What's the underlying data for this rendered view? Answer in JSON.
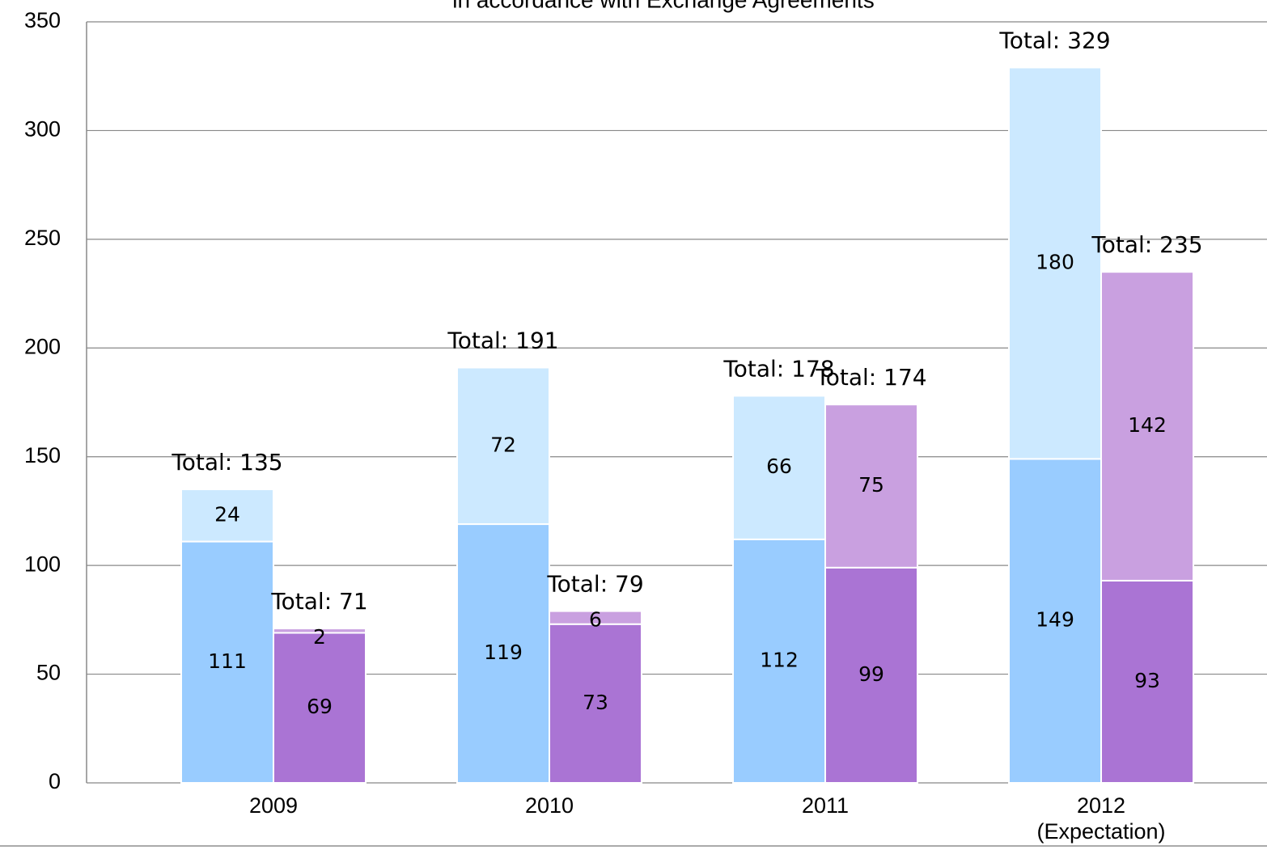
{
  "chart_data": {
    "type": "bar",
    "title": "in accordance with Exchange Agreements",
    "categories": [
      "2009",
      "2010",
      "2011",
      "2012\n(Expectation)"
    ],
    "stacks": [
      {
        "series": [
          {
            "color": "#99ccff",
            "values": [
              111,
              119,
              112,
              149
            ]
          },
          {
            "color": "#cce9ff",
            "values": [
              24,
              72,
              66,
              180
            ]
          }
        ],
        "totals": {
          "values": [
            135,
            191,
            178,
            329
          ],
          "value_labels": [
            "Total: 135",
            "Total: 191",
            "Total: 178",
            "Total: 329"
          ]
        }
      },
      {
        "series": [
          {
            "color": "#aa74d4",
            "values": [
              69,
              73,
              99,
              93
            ]
          },
          {
            "color": "#c9a0e0",
            "values": [
              2,
              6,
              75,
              142
            ]
          }
        ],
        "totals": {
          "values": [
            71,
            79,
            174,
            235
          ],
          "value_labels": [
            "Total: 71",
            "Total: 79",
            "Total: 174",
            "Total: 235"
          ]
        }
      }
    ],
    "ylim": [
      0,
      350
    ],
    "yticks": [
      0,
      50,
      100,
      150,
      200,
      250,
      300,
      350
    ],
    "grid": true
  }
}
